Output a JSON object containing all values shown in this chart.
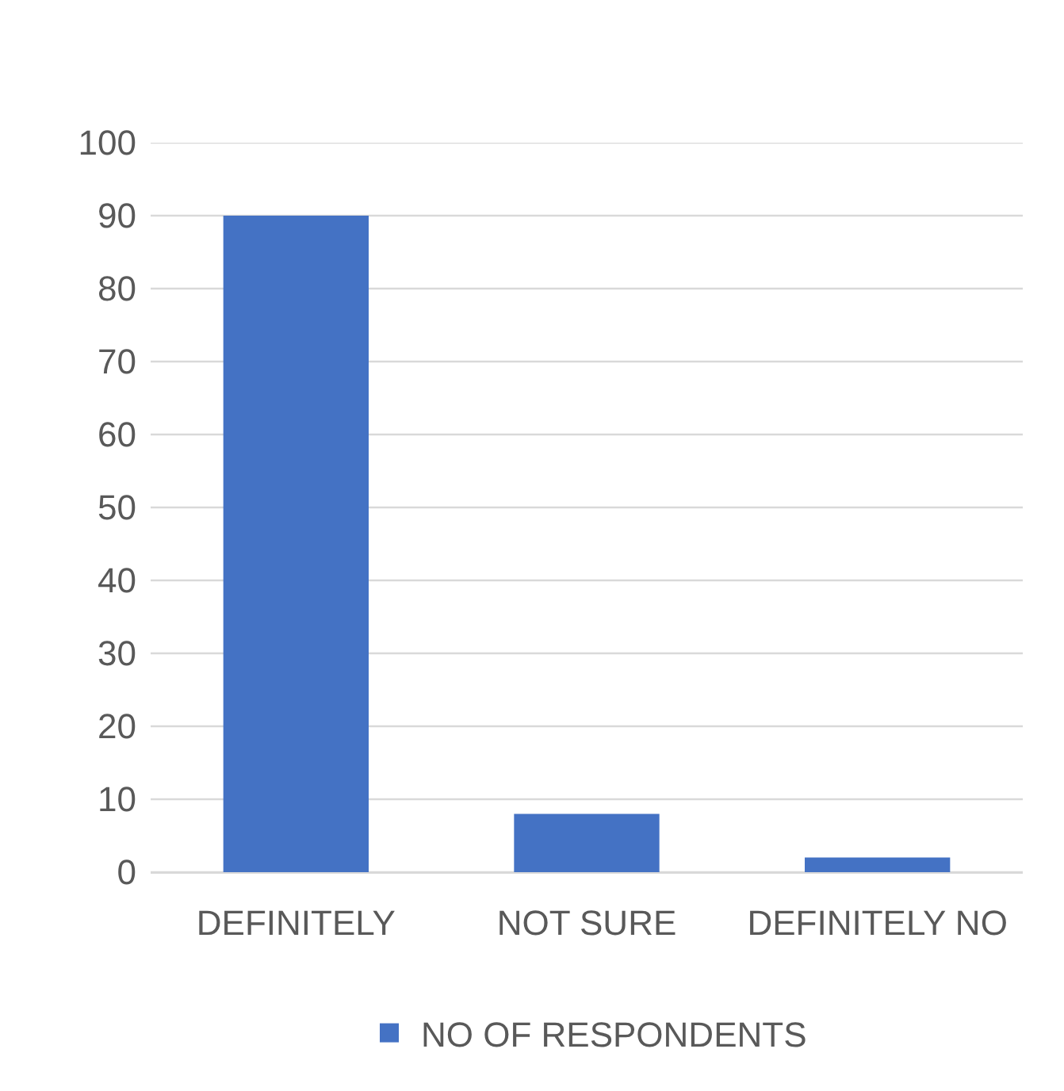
{
  "chart_data": {
    "type": "bar",
    "categories": [
      "DEFINITELY",
      "NOT SURE",
      "DEFINITELY NO"
    ],
    "series": [
      {
        "name": "NO OF RESPONDENTS",
        "color": "#4472c4",
        "values": [
          90,
          8,
          2
        ]
      }
    ],
    "ylim": [
      0,
      100
    ],
    "yticks": [
      0,
      10,
      20,
      30,
      40,
      50,
      60,
      70,
      80,
      90,
      100
    ],
    "grid": "y",
    "legend": "bottom"
  }
}
